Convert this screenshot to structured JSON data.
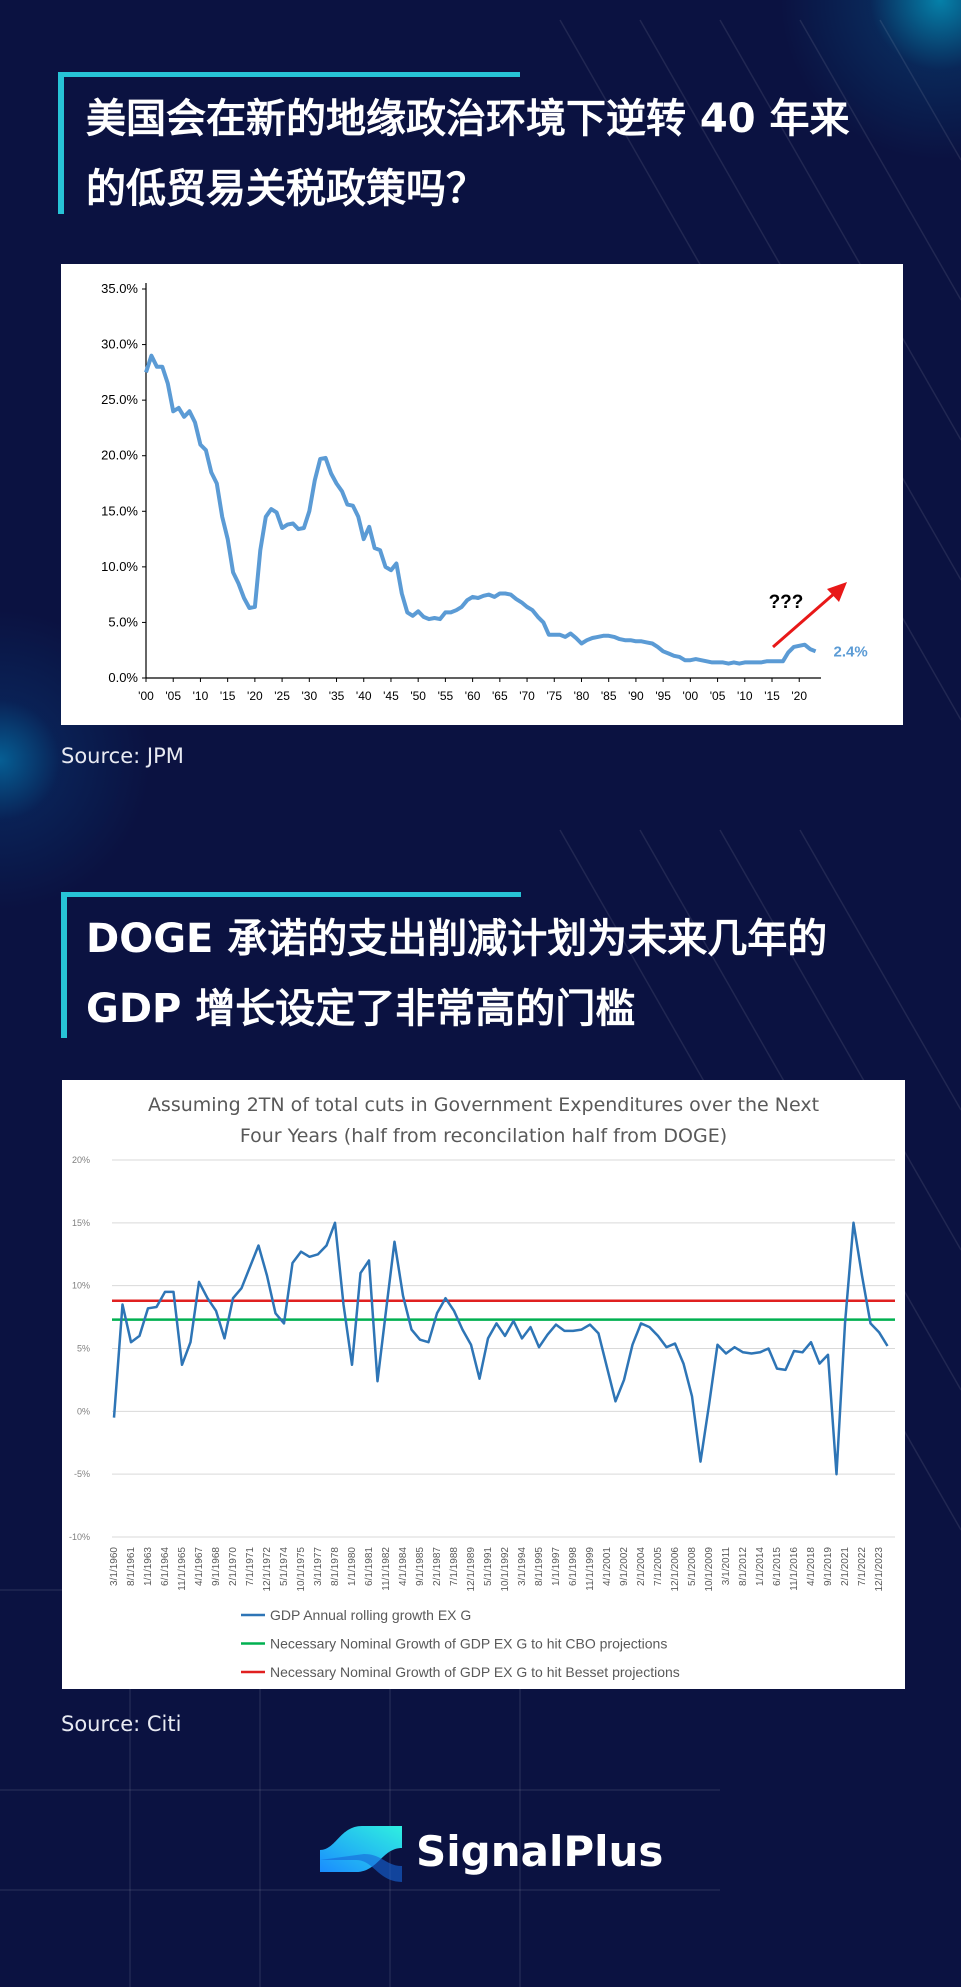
{
  "headings": [
    "美国会在新的地缘政治环境下逆转 40 年来的低贸易关税政策吗？",
    "DOGE 承诺的支出削减计划为未来几年的 GDP 增长设定了非常高的门槛"
  ],
  "sources": [
    "Source: JPM",
    "Source: Citi"
  ],
  "brand": "SignalPlus",
  "chart_data": [
    {
      "type": "line",
      "color": "#5b9bd5",
      "grid": false,
      "x": [
        1900,
        1901,
        1902,
        1903,
        1904,
        1905,
        1906,
        1907,
        1908,
        1909,
        1910,
        1911,
        1912,
        1913,
        1914,
        1915,
        1916,
        1917,
        1918,
        1919,
        1920,
        1921,
        1922,
        1923,
        1924,
        1925,
        1926,
        1927,
        1928,
        1929,
        1930,
        1931,
        1932,
        1933,
        1934,
        1935,
        1936,
        1937,
        1938,
        1939,
        1940,
        1941,
        1942,
        1943,
        1944,
        1945,
        1946,
        1947,
        1948,
        1949,
        1950,
        1951,
        1952,
        1953,
        1954,
        1955,
        1956,
        1957,
        1958,
        1959,
        1960,
        1961,
        1962,
        1963,
        1964,
        1965,
        1966,
        1967,
        1968,
        1969,
        1970,
        1971,
        1972,
        1973,
        1974,
        1975,
        1976,
        1977,
        1978,
        1979,
        1980,
        1981,
        1982,
        1983,
        1984,
        1985,
        1986,
        1987,
        1988,
        1989,
        1990,
        1991,
        1992,
        1993,
        1994,
        1995,
        1996,
        1997,
        1998,
        1999,
        2000,
        2001,
        2002,
        2003,
        2004,
        2005,
        2006,
        2007,
        2008,
        2009,
        2010,
        2011,
        2012,
        2013,
        2014,
        2015,
        2016,
        2017,
        2018,
        2019,
        2020,
        2021,
        2022,
        2023
      ],
      "values": [
        27.5,
        29,
        28,
        28,
        26.5,
        24,
        24.3,
        23.5,
        24,
        23,
        21,
        20.5,
        18.5,
        17.5,
        14.5,
        12.5,
        9.5,
        8.5,
        7.2,
        6.3,
        6.4,
        11.5,
        14.5,
        15.2,
        14.9,
        13.5,
        13.8,
        13.9,
        13.4,
        13.5,
        15,
        17.8,
        19.7,
        19.8,
        18.4,
        17.5,
        16.8,
        15.6,
        15.5,
        14.5,
        12.5,
        13.6,
        11.7,
        11.5,
        10,
        9.7,
        10.3,
        7.6,
        5.9,
        5.6,
        6,
        5.5,
        5.3,
        5.4,
        5.3,
        5.9,
        5.9,
        6.1,
        6.4,
        7,
        7.3,
        7.2,
        7.4,
        7.5,
        7.3,
        7.6,
        7.6,
        7.5,
        7.1,
        6.8,
        6.4,
        6.1,
        5.5,
        5,
        3.9,
        3.9,
        3.9,
        3.7,
        4,
        3.6,
        3.1,
        3.4,
        3.6,
        3.7,
        3.8,
        3.8,
        3.7,
        3.5,
        3.4,
        3.4,
        3.3,
        3.3,
        3.2,
        3.1,
        2.8,
        2.4,
        2.2,
        2,
        1.9,
        1.6,
        1.6,
        1.7,
        1.6,
        1.5,
        1.4,
        1.4,
        1.4,
        1.3,
        1.4,
        1.3,
        1.4,
        1.4,
        1.4,
        1.4,
        1.5,
        1.5,
        1.5,
        1.5,
        2.3,
        2.8,
        2.9,
        3,
        2.6,
        2.4
      ],
      "value_labels": [
        null,
        null,
        null,
        null,
        null,
        null,
        null,
        null,
        null,
        null,
        null,
        null,
        null,
        null,
        null,
        null,
        null,
        null,
        null,
        null,
        null,
        null,
        null,
        null,
        null,
        null,
        null,
        null,
        null,
        null,
        null,
        null,
        null,
        null,
        null,
        null,
        null,
        null,
        null,
        null,
        null,
        null,
        null,
        null,
        null,
        null,
        null,
        null,
        null,
        null,
        null,
        null,
        null,
        null,
        null,
        null,
        null,
        null,
        null,
        null,
        null,
        null,
        null,
        null,
        null,
        null,
        null,
        null,
        null,
        null,
        null,
        null,
        null,
        null,
        null,
        null,
        null,
        null,
        null,
        null,
        null,
        null,
        null,
        null,
        null,
        null,
        null,
        null,
        null,
        null,
        null,
        null,
        null,
        null,
        null,
        null,
        null,
        null,
        null,
        null,
        null,
        null,
        null,
        null,
        null,
        null,
        null,
        null,
        null,
        null,
        null,
        null,
        null,
        null,
        null,
        null,
        null,
        null,
        null,
        null,
        null,
        null,
        null,
        "2.4%"
      ],
      "annotation": "???",
      "xlim": [
        1900,
        2024
      ],
      "ylim": [
        0,
        35
      ],
      "xticks": [
        {
          "value": 1900,
          "label": "'00"
        },
        {
          "value": 1905,
          "label": "'05"
        },
        {
          "value": 1910,
          "label": "'10"
        },
        {
          "value": 1915,
          "label": "'15"
        },
        {
          "value": 1920,
          "label": "'20"
        },
        {
          "value": 1925,
          "label": "'25"
        },
        {
          "value": 1930,
          "label": "'30"
        },
        {
          "value": 1935,
          "label": "'35"
        },
        {
          "value": 1940,
          "label": "'40"
        },
        {
          "value": 1945,
          "label": "'45"
        },
        {
          "value": 1950,
          "label": "'50"
        },
        {
          "value": 1955,
          "label": "'55"
        },
        {
          "value": 1960,
          "label": "'60"
        },
        {
          "value": 1965,
          "label": "'65"
        },
        {
          "value": 1970,
          "label": "'70"
        },
        {
          "value": 1975,
          "label": "'75"
        },
        {
          "value": 1980,
          "label": "'80"
        },
        {
          "value": 1985,
          "label": "'85"
        },
        {
          "value": 1990,
          "label": "'90"
        },
        {
          "value": 1995,
          "label": "'95"
        },
        {
          "value": 2000,
          "label": "'00"
        },
        {
          "value": 2005,
          "label": "'05"
        },
        {
          "value": 2010,
          "label": "'10"
        },
        {
          "value": 2015,
          "label": "'15"
        },
        {
          "value": 2020,
          "label": "'20"
        }
      ],
      "yticks": [
        {
          "value": 0,
          "label": "0.0%"
        },
        {
          "value": 5,
          "label": "5.0%"
        },
        {
          "value": 10,
          "label": "10.0%"
        },
        {
          "value": 15,
          "label": "15.0%"
        },
        {
          "value": 20,
          "label": "20.0%"
        },
        {
          "value": 25,
          "label": "25.0%"
        },
        {
          "value": 30,
          "label": "30.0%"
        },
        {
          "value": 35,
          "label": "35.0%"
        }
      ]
    },
    {
      "type": "line",
      "grid": true,
      "title": "Assuming 2TN of total cuts in Government Expenditures over the Next Four Years (half from reconcilation half from DOGE)",
      "categories": [
        "3/1/1960",
        null,
        "8/1/1961",
        null,
        "1/1/1963",
        null,
        "6/1/1964",
        null,
        "11/1/1965",
        null,
        "4/1/1967",
        null,
        "9/1/1968",
        null,
        "2/1/1970",
        null,
        "7/1/1971",
        null,
        "12/1/1972",
        null,
        "5/1/1974",
        null,
        "10/1/1975",
        null,
        "3/1/1977",
        null,
        "8/1/1978",
        null,
        "1/1/1980",
        null,
        "6/1/1981",
        null,
        "11/1/1982",
        null,
        "4/1/1984",
        null,
        "9/1/1985",
        null,
        "2/1/1987",
        null,
        "7/1/1988",
        null,
        "12/1/1989",
        null,
        "5/1/1991",
        null,
        "10/1/1992",
        null,
        "3/1/1994",
        null,
        "8/1/1995",
        null,
        "1/1/1997",
        null,
        "6/1/1998",
        null,
        "11/1/1999",
        null,
        "4/1/2001",
        null,
        "9/1/2002",
        null,
        "2/1/2004",
        null,
        "7/1/2005",
        null,
        "12/1/2006",
        null,
        "5/1/2008",
        null,
        "10/1/2009",
        null,
        "3/1/2011",
        null,
        "8/1/2012",
        null,
        "1/1/2014",
        null,
        "6/1/2015",
        null,
        "11/1/2016",
        null,
        "4/1/2018",
        null,
        "9/1/2019",
        null,
        "2/1/2021",
        null,
        "7/1/2022",
        null,
        "12/1/2023",
        null
      ],
      "series": [
        {
          "name": "GDP Annual rolling growth EX G",
          "color": "#2e75b6",
          "values": [
            -0.5,
            8.5,
            5.5,
            6,
            8.2,
            8.3,
            9.5,
            9.5,
            3.7,
            5.5,
            10.3,
            9,
            8,
            5.8,
            9,
            9.8,
            11.5,
            13.2,
            10.8,
            7.8,
            7,
            11.8,
            12.7,
            12.3,
            12.5,
            13.2,
            15,
            8.5,
            3.7,
            11,
            12,
            2.4,
            8,
            13.5,
            9.2,
            6.5,
            5.7,
            5.5,
            7.8,
            9,
            8,
            6.5,
            5.3,
            2.6,
            5.8,
            7,
            6,
            7.2,
            5.8,
            6.7,
            5.1,
            6.1,
            6.9,
            6.4,
            6.4,
            6.5,
            6.9,
            6.2,
            3.5,
            0.8,
            2.5,
            5.3,
            7,
            6.7,
            6,
            5.1,
            5.4,
            3.8,
            1.2,
            -4,
            0.5,
            5.3,
            4.6,
            5.1,
            4.7,
            4.6,
            4.7,
            5,
            3.4,
            3.3,
            4.8,
            4.7,
            5.5,
            3.8,
            4.5,
            -5,
            7,
            15,
            10.8,
            7,
            6.3,
            5.2
          ]
        }
      ],
      "reference_lines": [
        {
          "name": "Necessary Nominal Growth of GDP EX G to hit CBO projections",
          "color": "#00b050",
          "value": 7.3
        },
        {
          "name": "Necessary Nominal Growth of GDP EX G to hit Besset projections",
          "color": "#e02020",
          "value": 8.8
        }
      ],
      "ylim": [
        -10,
        20
      ],
      "yticks": [
        {
          "value": -10,
          "label": "-10%"
        },
        {
          "value": -5,
          "label": "-5%"
        },
        {
          "value": 0,
          "label": "0%"
        },
        {
          "value": 5,
          "label": "5%"
        },
        {
          "value": 10,
          "label": "10%"
        },
        {
          "value": 15,
          "label": "15%"
        },
        {
          "value": 20,
          "label": "20%"
        }
      ]
    }
  ]
}
